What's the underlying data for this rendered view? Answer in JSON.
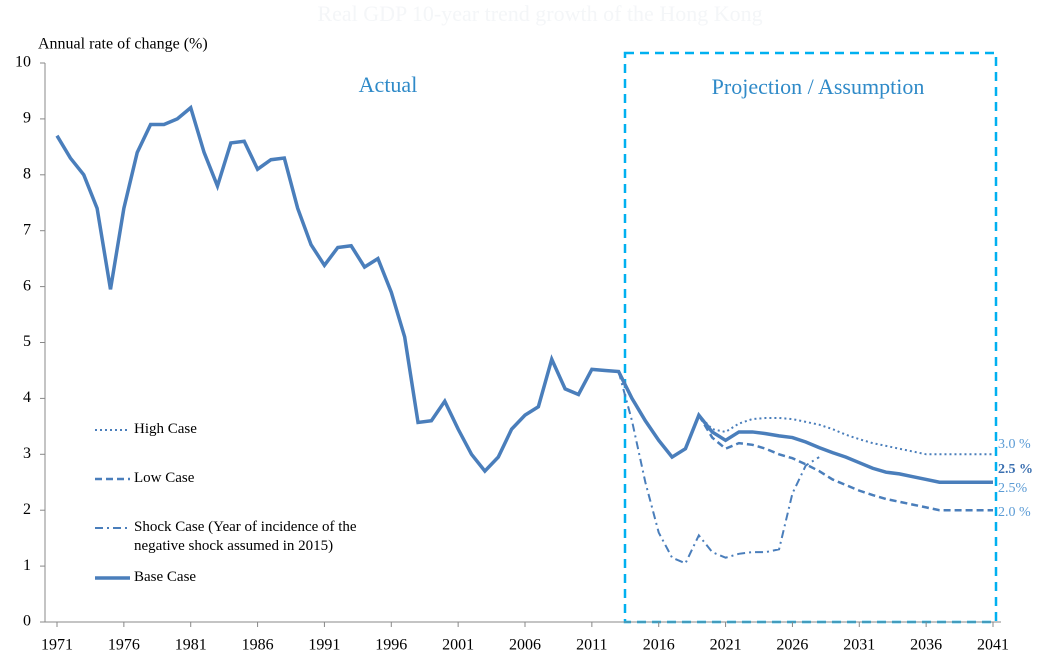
{
  "chart_data": {
    "type": "line",
    "title": "Real GDP 10-year trend growth of the Hong Kong",
    "y_label": "Annual rate of change (%)",
    "xlim": [
      1971,
      2041
    ],
    "xticks": [
      1971,
      1976,
      1981,
      1986,
      1991,
      1996,
      2001,
      2006,
      2011,
      2016,
      2021,
      2026,
      2031,
      2036,
      2041
    ],
    "ylim": [
      0,
      10
    ],
    "yticks": [
      0,
      1,
      2,
      3,
      4,
      5,
      6,
      7,
      8,
      9,
      10
    ],
    "grid": false,
    "legend": "left",
    "x": [
      1971,
      1972,
      1973,
      1974,
      1975,
      1976,
      1977,
      1978,
      1979,
      1980,
      1981,
      1982,
      1983,
      1984,
      1985,
      1986,
      1987,
      1988,
      1989,
      1990,
      1991,
      1992,
      1993,
      1994,
      1995,
      1996,
      1997,
      1998,
      1999,
      2000,
      2001,
      2002,
      2003,
      2004,
      2005,
      2006,
      2007,
      2008,
      2009,
      2010,
      2011,
      2012,
      2013,
      2014,
      2015,
      2016,
      2017,
      2018,
      2019,
      2020,
      2021,
      2022,
      2023,
      2024,
      2025,
      2026,
      2027,
      2028,
      2029,
      2030,
      2031,
      2032,
      2033,
      2034,
      2035,
      2036,
      2037,
      2038,
      2039,
      2040,
      2041
    ],
    "series": [
      {
        "name": "High Case",
        "color": "#4a7ebb",
        "dash": "2,3",
        "width": 2,
        "values": [
          null,
          null,
          null,
          null,
          null,
          null,
          null,
          null,
          null,
          null,
          null,
          null,
          null,
          null,
          null,
          null,
          null,
          null,
          null,
          null,
          null,
          null,
          null,
          null,
          null,
          null,
          null,
          null,
          null,
          null,
          null,
          null,
          null,
          null,
          null,
          null,
          null,
          null,
          null,
          null,
          null,
          null,
          null,
          null,
          null,
          null,
          null,
          null,
          3.7,
          3.45,
          3.4,
          3.55,
          3.63,
          3.65,
          3.65,
          3.63,
          3.58,
          3.53,
          3.45,
          3.35,
          3.27,
          3.2,
          3.15,
          3.1,
          3.05,
          3.0,
          3.0,
          3.0,
          3.0,
          3.0,
          3.0
        ]
      },
      {
        "name": "Low Case",
        "color": "#4a7ebb",
        "dash": "7,4",
        "width": 2.5,
        "values": [
          null,
          null,
          null,
          null,
          null,
          null,
          null,
          null,
          null,
          null,
          null,
          null,
          null,
          null,
          null,
          null,
          null,
          null,
          null,
          null,
          null,
          null,
          null,
          null,
          null,
          null,
          null,
          null,
          null,
          null,
          null,
          null,
          null,
          null,
          null,
          null,
          null,
          null,
          null,
          null,
          null,
          null,
          null,
          null,
          null,
          null,
          null,
          null,
          3.7,
          3.3,
          3.1,
          3.2,
          3.17,
          3.1,
          3.0,
          2.93,
          2.82,
          2.7,
          2.55,
          2.45,
          2.35,
          2.27,
          2.2,
          2.15,
          2.1,
          2.05,
          2.0,
          2.0,
          2.0,
          2.0,
          2.0
        ]
      },
      {
        "name": "Shock Case (Year of incidence of the negative shock assumed in 2015)",
        "color": "#4a7ebb",
        "dash": "8,4,2,4",
        "width": 2,
        "values": [
          null,
          null,
          null,
          null,
          null,
          null,
          null,
          null,
          null,
          null,
          null,
          null,
          null,
          null,
          null,
          null,
          null,
          null,
          null,
          null,
          null,
          null,
          null,
          null,
          null,
          null,
          null,
          null,
          null,
          null,
          null,
          null,
          null,
          null,
          null,
          null,
          null,
          null,
          null,
          null,
          null,
          null,
          4.48,
          3.6,
          2.5,
          1.6,
          1.15,
          1.05,
          1.55,
          1.25,
          1.15,
          1.22,
          1.25,
          1.25,
          1.3,
          2.3,
          2.8,
          2.95,
          null,
          null,
          null,
          null,
          null,
          null,
          null,
          null,
          null,
          null,
          null,
          null,
          null
        ]
      },
      {
        "name": "Base Case",
        "color": "#4a7ebb",
        "dash": "",
        "width": 3.5,
        "values": [
          8.7,
          8.3,
          8.0,
          7.4,
          5.95,
          7.4,
          8.4,
          8.9,
          8.9,
          9.0,
          9.2,
          8.4,
          7.8,
          8.57,
          8.6,
          8.1,
          8.27,
          8.3,
          7.4,
          6.75,
          6.38,
          6.7,
          6.73,
          6.35,
          6.5,
          5.9,
          5.1,
          3.57,
          3.6,
          3.95,
          3.45,
          3.0,
          2.7,
          2.95,
          3.45,
          3.7,
          3.85,
          4.7,
          4.17,
          4.07,
          4.52,
          4.5,
          4.48,
          4.0,
          3.6,
          3.25,
          2.95,
          3.1,
          3.7,
          3.4,
          3.25,
          3.4,
          3.4,
          3.37,
          3.33,
          3.3,
          3.22,
          3.12,
          3.03,
          2.95,
          2.85,
          2.75,
          2.68,
          2.65,
          2.6,
          2.55,
          2.5,
          2.5,
          2.5,
          2.5,
          2.5
        ]
      }
    ],
    "annotations": [
      {
        "text": "Actual"
      },
      {
        "text": "Projection / Assumption"
      },
      {
        "text": "3.0 %"
      },
      {
        "text": "2.5 %"
      },
      {
        "text": "2.5%"
      },
      {
        "text": "2.0 %"
      }
    ]
  }
}
